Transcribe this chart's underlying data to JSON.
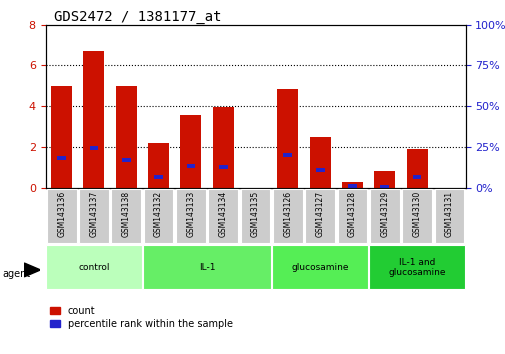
{
  "title": "GDS2472 / 1381177_at",
  "samples": [
    "GSM143136",
    "GSM143137",
    "GSM143138",
    "GSM143132",
    "GSM143133",
    "GSM143134",
    "GSM143135",
    "GSM143126",
    "GSM143127",
    "GSM143128",
    "GSM143129",
    "GSM143130",
    "GSM143131"
  ],
  "count_values": [
    5.0,
    6.7,
    5.0,
    2.2,
    3.55,
    3.95,
    0.0,
    4.85,
    2.5,
    0.3,
    0.8,
    1.9,
    0.0
  ],
  "percentile_values": [
    1.45,
    1.95,
    1.35,
    0.5,
    1.05,
    1.0,
    0.0,
    1.6,
    0.85,
    0.1,
    0.05,
    0.5,
    0.0
  ],
  "bar_color": "#cc1100",
  "blue_color": "#2222cc",
  "ylim_left": [
    0,
    8
  ],
  "ylim_right": [
    0,
    100
  ],
  "yticks_left": [
    0,
    2,
    4,
    6,
    8
  ],
  "yticks_right": [
    0,
    25,
    50,
    75,
    100
  ],
  "group_defs": [
    {
      "label": "control",
      "start": 0,
      "end": 2,
      "color": "#bbffbb"
    },
    {
      "label": "IL-1",
      "start": 3,
      "end": 6,
      "color": "#66ee66"
    },
    {
      "label": "glucosamine",
      "start": 7,
      "end": 9,
      "color": "#55ee55"
    },
    {
      "label": "IL-1 and\nglucosamine",
      "start": 10,
      "end": 12,
      "color": "#22cc33"
    }
  ],
  "legend_count_label": "count",
  "legend_pct_label": "percentile rank within the sample",
  "agent_label": "agent",
  "title_fontsize": 10,
  "tick_fontsize": 8
}
